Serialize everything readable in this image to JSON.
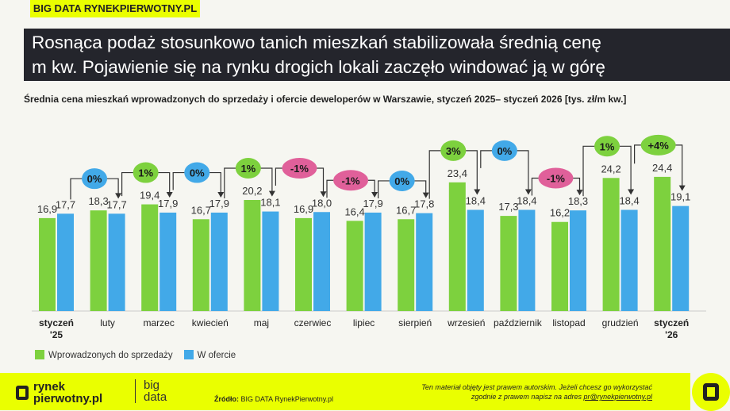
{
  "header": {
    "tag": "BIG DATA RYNEKPIERWOTNY.PL",
    "title_line1": "Rosnąca podaż stosunkowo tanich mieszkań stabilizowała średnią cenę",
    "title_line2": "m kw. Pojawienie się na rynku drogich lokali zaczęło windować ją w górę"
  },
  "chart_data": {
    "type": "bar",
    "title": "Średnia cena mieszkań wprowadzonych do sprzedaży i ofercie deweloperów w Warszawie, styczeń 2025– styczeń 2026 [tys. zł/m kw.]",
    "categories": [
      [
        "styczeń",
        "'25"
      ],
      [
        "luty"
      ],
      [
        "marzec"
      ],
      [
        "kwiecień"
      ],
      [
        "maj"
      ],
      [
        "czerwiec"
      ],
      [
        "lipiec"
      ],
      [
        "sierpień"
      ],
      [
        "wrzesień"
      ],
      [
        "październik"
      ],
      [
        "listopad"
      ],
      [
        "grudzień"
      ],
      [
        "styczeń",
        "'26"
      ]
    ],
    "bold_categories": [
      0,
      12
    ],
    "series": [
      {
        "name": "Wprowadzonych do sprzedaży",
        "color": "#7dd13e",
        "values": [
          16.9,
          18.3,
          19.4,
          16.7,
          20.2,
          16.9,
          16.4,
          16.7,
          23.4,
          17.3,
          16.2,
          24.2,
          24.4
        ]
      },
      {
        "name": "W ofercie",
        "color": "#42a9e8",
        "values": [
          17.7,
          17.7,
          17.9,
          17.9,
          18.1,
          18.0,
          17.9,
          17.8,
          18.4,
          18.4,
          18.3,
          18.4,
          19.1
        ]
      }
    ],
    "changes": [
      "0%",
      "1%",
      "0%",
      "1%",
      "-1%",
      "-1%",
      "0%",
      "3%",
      "0%",
      "-1%",
      "1%",
      "+4%"
    ],
    "change_colors": {
      "zero": "#42a9e8",
      "positive": "#7dd13e",
      "negative": "#e0609a"
    },
    "ylim": [
      0,
      26
    ],
    "grid": false,
    "legend": "bottom-left"
  },
  "footer": {
    "logo_line1": "rynek",
    "logo_line2": "pierwotny.pl",
    "bigdata_line1": "big",
    "bigdata_line2": "data",
    "source_label": "Źródło:",
    "source": "BIG DATA RynekPierwotny.pl",
    "copyright_line1": "Ten materiał objęty jest prawem autorskim. Jeżeli chcesz go wykorzystać",
    "copyright_line2": "zgodnie z prawem napisz na adres",
    "email": "pr@rynekpierwotny.pl"
  }
}
